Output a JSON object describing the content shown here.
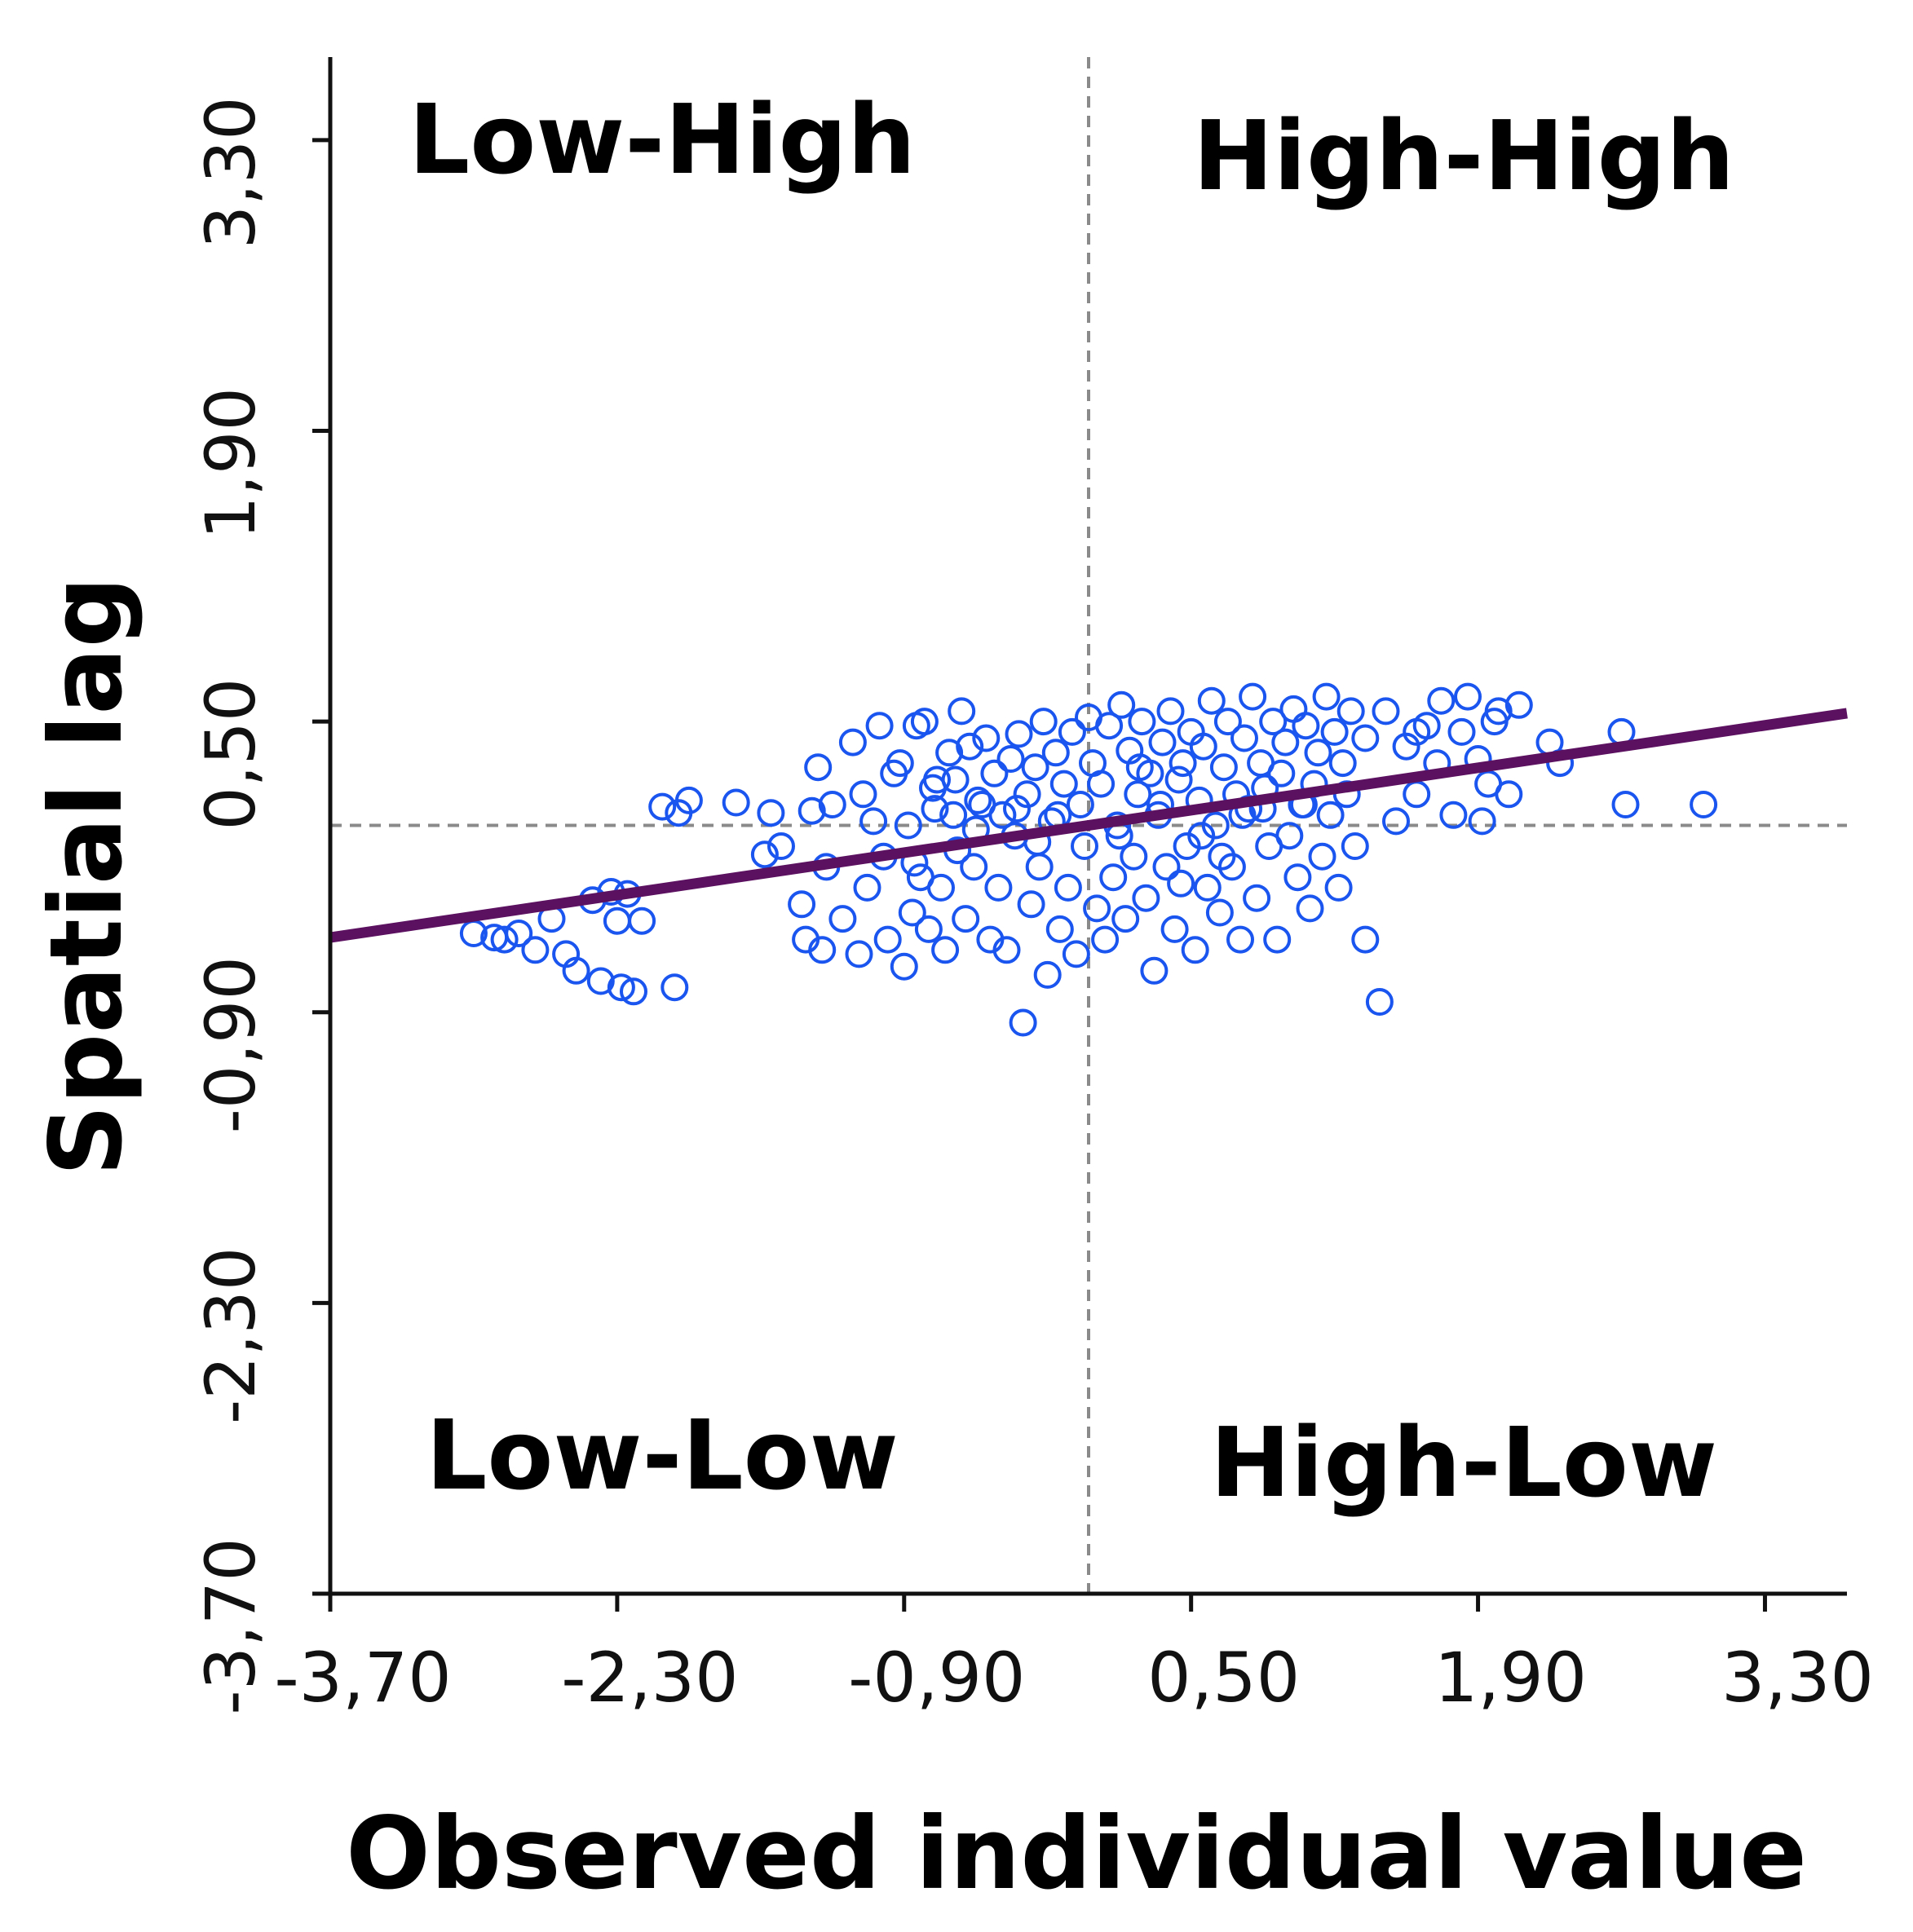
{
  "chart_data": {
    "type": "scatter",
    "title": "",
    "xlabel": "Observed individual value",
    "ylabel": "Spatial lag",
    "xlim": [
      -3.7,
      3.7
    ],
    "ylim": [
      -3.7,
      3.7
    ],
    "x_ticks": [
      -3.7,
      -2.3,
      -0.9,
      0.5,
      1.9,
      3.3
    ],
    "x_tick_labels": [
      "-3,70",
      "-2,30",
      "-0,90",
      "0,50",
      "1,90",
      "3,30"
    ],
    "y_ticks": [
      -3.7,
      -2.3,
      -0.9,
      0.5,
      1.9,
      3.3
    ],
    "y_tick_labels": [
      "-3,70",
      "-2,30",
      "-0,90",
      "0,50",
      "1,90",
      "3,30"
    ],
    "reference_lines": {
      "x_mean": 0.0,
      "y_mean": 0.0
    },
    "quadrant_labels": {
      "top_left": "Low-High",
      "top_right": "High-High",
      "bottom_left": "Low-Low",
      "bottom_right": "High-Low"
    },
    "regression_line": {
      "x": [
        -3.7,
        3.7
      ],
      "y": [
        -0.54,
        0.54
      ]
    },
    "grid": false,
    "series": [
      {
        "name": "observations",
        "marker": "open-circle",
        "color": "#1a55f0",
        "points": [
          [
            -3.0,
            -0.52
          ],
          [
            -2.9,
            -0.54
          ],
          [
            -2.85,
            -0.55
          ],
          [
            -2.78,
            -0.52
          ],
          [
            -2.7,
            -0.6
          ],
          [
            -2.62,
            -0.45
          ],
          [
            -2.55,
            -0.62
          ],
          [
            -2.5,
            -0.7
          ],
          [
            -2.42,
            -0.36
          ],
          [
            -2.38,
            -0.75
          ],
          [
            -2.33,
            -0.32
          ],
          [
            -2.3,
            -0.46
          ],
          [
            -2.28,
            -0.78
          ],
          [
            -2.25,
            -0.33
          ],
          [
            -2.22,
            -0.8
          ],
          [
            -2.18,
            -0.46
          ],
          [
            -2.08,
            0.09
          ],
          [
            -2.02,
            -0.78
          ],
          [
            -2.0,
            0.06
          ],
          [
            -1.95,
            0.12
          ],
          [
            -1.72,
            0.11
          ],
          [
            -1.58,
            -0.14
          ],
          [
            -1.55,
            0.06
          ],
          [
            -1.5,
            -0.1
          ],
          [
            -1.4,
            -0.38
          ],
          [
            -1.38,
            -0.55
          ],
          [
            -1.35,
            0.07
          ],
          [
            -1.32,
            0.28
          ],
          [
            -1.3,
            -0.6
          ],
          [
            -1.28,
            -0.2
          ],
          [
            -1.25,
            0.1
          ],
          [
            -1.2,
            -0.45
          ],
          [
            -1.15,
            0.4
          ],
          [
            -1.12,
            -0.62
          ],
          [
            -1.1,
            0.15
          ],
          [
            -1.08,
            -0.3
          ],
          [
            -1.05,
            0.02
          ],
          [
            -1.02,
            0.48
          ],
          [
            -1.0,
            -0.15
          ],
          [
            -0.98,
            -0.55
          ],
          [
            -0.95,
            0.25
          ],
          [
            -0.92,
            0.3
          ],
          [
            -0.9,
            -0.68
          ],
          [
            -0.88,
            0.0
          ],
          [
            -0.86,
            -0.42
          ],
          [
            -0.84,
            0.48
          ],
          [
            -0.82,
            -0.25
          ],
          [
            -0.8,
            0.5
          ],
          [
            -0.78,
            -0.5
          ],
          [
            -0.76,
            0.18
          ],
          [
            -0.74,
            0.22
          ],
          [
            -0.72,
            -0.3
          ],
          [
            -0.7,
            -0.6
          ],
          [
            -0.68,
            0.35
          ],
          [
            -0.66,
            0.05
          ],
          [
            -0.64,
            -0.12
          ],
          [
            -0.62,
            0.55
          ],
          [
            -0.6,
            -0.45
          ],
          [
            -0.58,
            0.38
          ],
          [
            -0.56,
            -0.2
          ],
          [
            -0.54,
            0.12
          ],
          [
            -0.52,
            0.1
          ],
          [
            -0.5,
            0.42
          ],
          [
            -0.48,
            -0.55
          ],
          [
            -0.46,
            0.25
          ],
          [
            -0.44,
            -0.3
          ],
          [
            -0.42,
            0.05
          ],
          [
            -0.4,
            -0.6
          ],
          [
            -0.38,
            0.32
          ],
          [
            -0.36,
            -0.05
          ],
          [
            -0.34,
            0.44
          ],
          [
            -0.32,
            -0.95
          ],
          [
            -0.3,
            0.15
          ],
          [
            -0.28,
            -0.38
          ],
          [
            -0.26,
            0.28
          ],
          [
            -0.24,
            -0.2
          ],
          [
            -0.22,
            0.5
          ],
          [
            -0.2,
            -0.72
          ],
          [
            -0.18,
            0.02
          ],
          [
            -0.16,
            0.35
          ],
          [
            -0.14,
            -0.5
          ],
          [
            -0.12,
            0.2
          ],
          [
            -0.1,
            -0.3
          ],
          [
            -0.08,
            0.45
          ],
          [
            -0.06,
            -0.62
          ],
          [
            -0.04,
            0.1
          ],
          [
            -0.02,
            -0.1
          ],
          [
            0.0,
            0.52
          ],
          [
            0.02,
            0.3
          ],
          [
            0.04,
            -0.4
          ],
          [
            0.06,
            0.2
          ],
          [
            0.08,
            -0.55
          ],
          [
            0.1,
            0.48
          ],
          [
            0.12,
            -0.25
          ],
          [
            0.14,
            0.0
          ],
          [
            0.16,
            0.58
          ],
          [
            0.18,
            -0.45
          ],
          [
            0.2,
            0.36
          ],
          [
            0.22,
            -0.15
          ],
          [
            0.24,
            0.15
          ],
          [
            0.26,
            0.5
          ],
          [
            0.28,
            -0.35
          ],
          [
            0.3,
            0.25
          ],
          [
            0.32,
            -0.7
          ],
          [
            0.34,
            0.05
          ],
          [
            0.36,
            0.4
          ],
          [
            0.38,
            -0.2
          ],
          [
            0.4,
            0.55
          ],
          [
            0.42,
            -0.5
          ],
          [
            0.44,
            0.22
          ],
          [
            0.46,
            0.3
          ],
          [
            0.48,
            -0.1
          ],
          [
            0.5,
            0.45
          ],
          [
            0.52,
            -0.6
          ],
          [
            0.54,
            0.12
          ],
          [
            0.56,
            0.38
          ],
          [
            0.58,
            -0.3
          ],
          [
            0.6,
            0.6
          ],
          [
            0.62,
            0.0
          ],
          [
            0.64,
            -0.42
          ],
          [
            0.66,
            0.28
          ],
          [
            0.68,
            0.5
          ],
          [
            0.7,
            -0.2
          ],
          [
            0.72,
            0.15
          ],
          [
            0.74,
            -0.55
          ],
          [
            0.76,
            0.42
          ],
          [
            0.78,
            0.08
          ],
          [
            0.8,
            0.62
          ],
          [
            0.82,
            -0.35
          ],
          [
            0.84,
            0.3
          ],
          [
            0.86,
            0.18
          ],
          [
            0.88,
            -0.1
          ],
          [
            0.9,
            0.5
          ],
          [
            0.92,
            -0.55
          ],
          [
            0.94,
            0.25
          ],
          [
            0.96,
            0.4
          ],
          [
            0.98,
            -0.05
          ],
          [
            1.0,
            0.56
          ],
          [
            1.02,
            -0.25
          ],
          [
            1.04,
            0.1
          ],
          [
            1.06,
            0.48
          ],
          [
            1.08,
            -0.4
          ],
          [
            1.1,
            0.2
          ],
          [
            1.12,
            0.35
          ],
          [
            1.14,
            -0.15
          ],
          [
            1.16,
            0.62
          ],
          [
            1.18,
            0.05
          ],
          [
            1.2,
            0.45
          ],
          [
            1.22,
            -0.3
          ],
          [
            1.24,
            0.3
          ],
          [
            1.26,
            0.15
          ],
          [
            1.28,
            0.55
          ],
          [
            1.3,
            -0.1
          ],
          [
            -0.15,
            0.05
          ],
          [
            0.15,
            -0.05
          ],
          [
            0.35,
            0.1
          ],
          [
            0.55,
            -0.05
          ],
          [
            0.75,
            0.05
          ],
          [
            -0.35,
            0.08
          ],
          [
            -0.55,
            -0.02
          ],
          [
            -0.75,
            0.08
          ],
          [
            0.25,
            0.28
          ],
          [
            0.45,
            -0.28
          ],
          [
            -0.25,
            -0.08
          ],
          [
            0.65,
            -0.15
          ],
          [
            0.85,
            0.08
          ],
          [
            1.05,
            0.1
          ],
          [
            -0.65,
            0.22
          ],
          [
            -0.85,
            -0.18
          ],
          [
            1.35,
            -0.55
          ],
          [
            1.42,
            -0.85
          ],
          [
            1.35,
            0.42
          ],
          [
            1.45,
            0.55
          ],
          [
            1.5,
            0.02
          ],
          [
            1.55,
            0.38
          ],
          [
            1.6,
            0.15
          ],
          [
            1.65,
            0.48
          ],
          [
            1.72,
            0.6
          ],
          [
            1.78,
            0.05
          ],
          [
            1.82,
            0.45
          ],
          [
            1.85,
            0.62
          ],
          [
            1.9,
            0.32
          ],
          [
            1.92,
            0.02
          ],
          [
            1.98,
            0.5
          ],
          [
            2.05,
            0.15
          ],
          [
            2.1,
            0.58
          ],
          [
            2.25,
            0.4
          ],
          [
            2.3,
            0.3
          ],
          [
            2.6,
            0.45
          ],
          [
            2.62,
            0.1
          ],
          [
            3.0,
            0.1
          ],
          [
            1.7,
            0.3
          ],
          [
            1.95,
            0.2
          ],
          [
            2.0,
            0.55
          ],
          [
            1.6,
            0.45
          ]
        ]
      }
    ]
  }
}
